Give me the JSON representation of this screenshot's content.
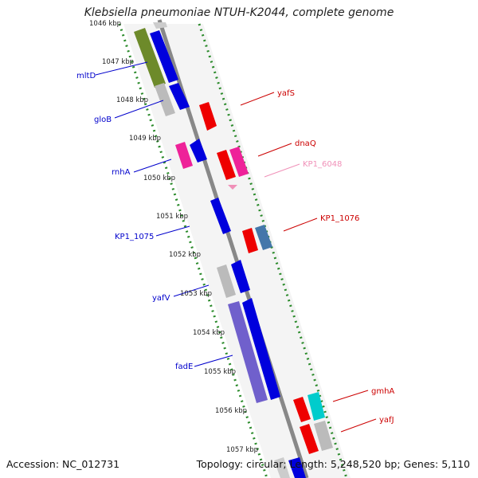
{
  "title": "Klebsiella pneumoniae NTUH-K2044, complete genome",
  "footer": {
    "accession": "Accession: NC_012731",
    "summary": "Topology: circular; Length: 5,248,520 bp; Genes: 5,110"
  },
  "ticks": [
    "1046 kbp",
    "1047 kbp",
    "1048 kbp",
    "1049 kbp",
    "1050 kbp",
    "1051 kbp",
    "1052 kbp",
    "1053 kbp",
    "1054 kbp",
    "1055 kbp",
    "1056 kbp",
    "1057 kbp"
  ],
  "left_genes": [
    {
      "label": "mltD",
      "color": "#0000cc"
    },
    {
      "label": "gloB",
      "color": "#0000cc"
    },
    {
      "label": "rnhA",
      "color": "#0000cc"
    },
    {
      "label": "KP1_1075",
      "color": "#0000cc"
    },
    {
      "label": "yafV",
      "color": "#0000cc"
    },
    {
      "label": "fadE",
      "color": "#0000cc"
    }
  ],
  "right_genes": [
    {
      "label": "yafS",
      "color": "#cc0000"
    },
    {
      "label": "dnaQ",
      "color": "#cc0000"
    },
    {
      "label": "KP1_6048",
      "color": "#f090b8"
    },
    {
      "label": "KP1_1076",
      "color": "#cc0000"
    },
    {
      "label": "gmhA",
      "color": "#cc0000"
    },
    {
      "label": "yafJ",
      "color": "#cc0000"
    }
  ]
}
